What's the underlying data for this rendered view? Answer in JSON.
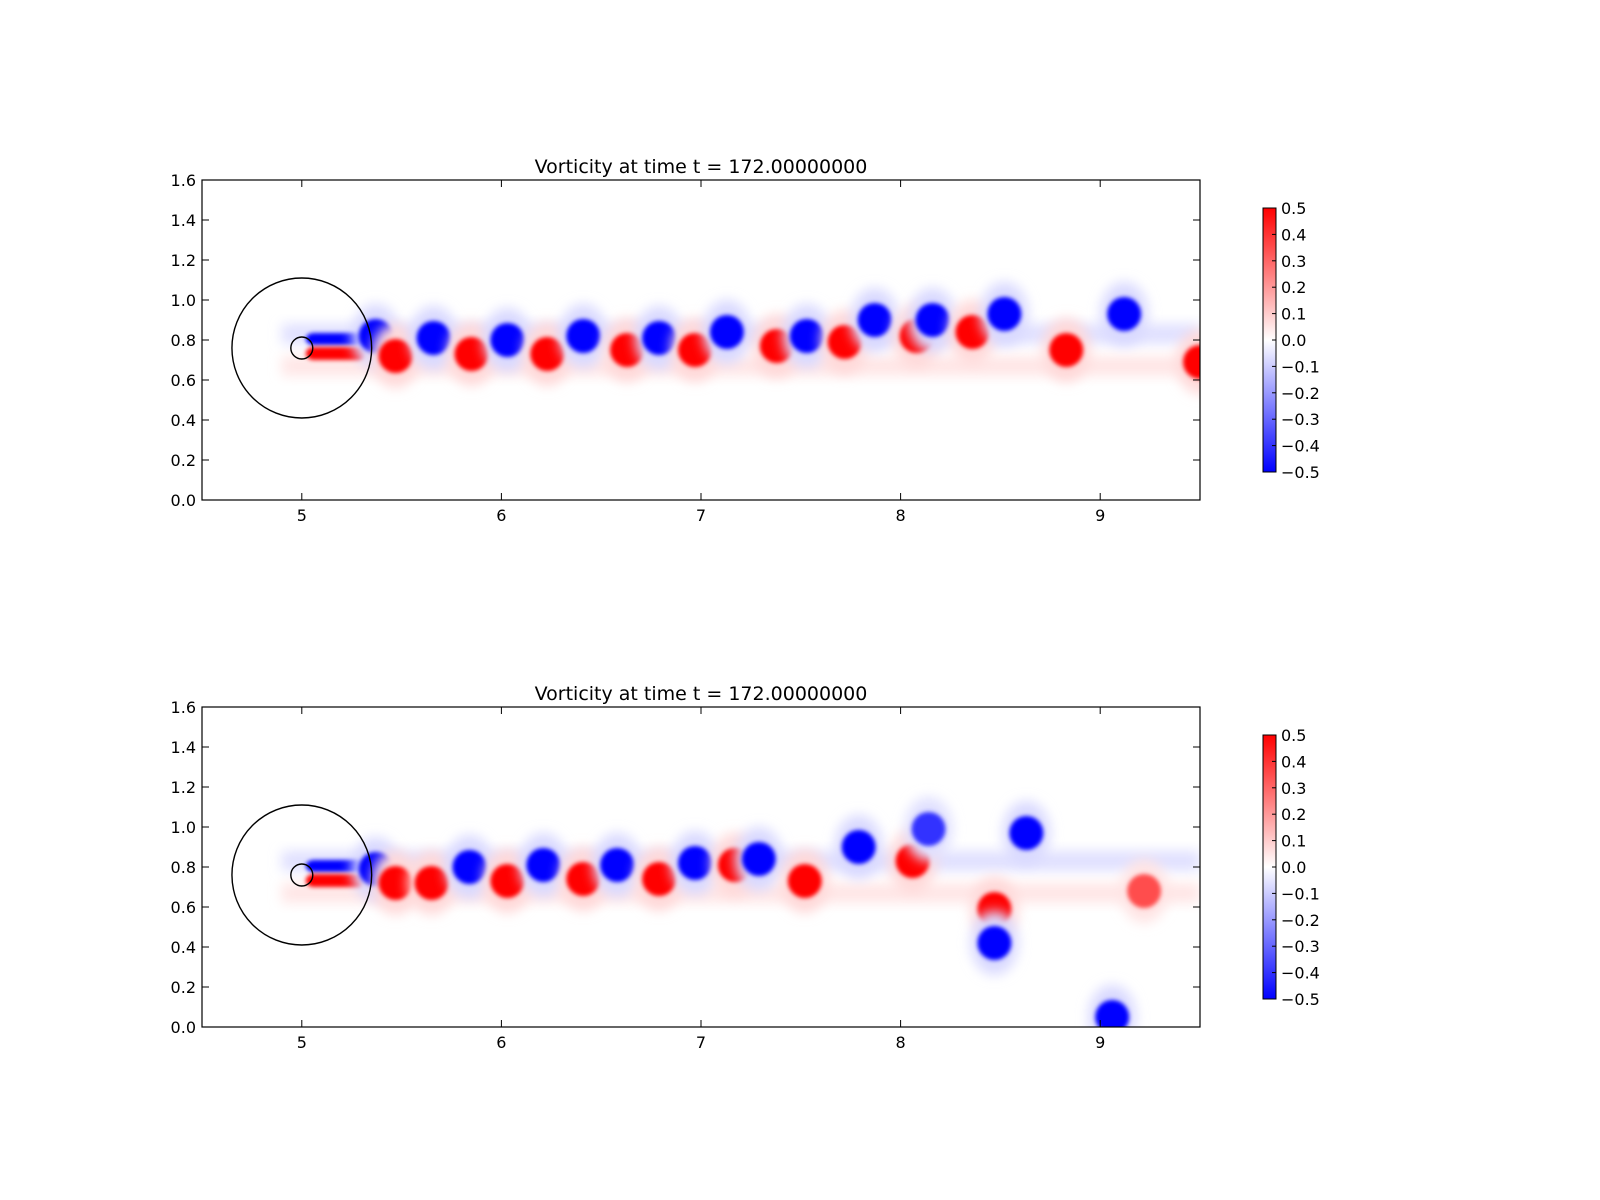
{
  "chart_data": [
    {
      "type": "heatmap",
      "title": "Vorticity at time t =   172.00000000",
      "xlabel": "",
      "ylabel": "",
      "xlim": [
        4.5,
        9.5
      ],
      "ylim": [
        0.0,
        1.6
      ],
      "xticks": [
        5,
        6,
        7,
        8,
        9
      ],
      "yticks": [
        "0.0",
        "0.2",
        "0.4",
        "0.6",
        "0.8",
        "1.0",
        "1.2",
        "1.4",
        "1.6"
      ],
      "colorbar": {
        "min": -0.5,
        "max": 0.5,
        "ticks": [
          "0.5",
          "0.4",
          "0.3",
          "0.2",
          "0.1",
          "0.0",
          "−0.1",
          "−0.2",
          "−0.3",
          "−0.4",
          "−0.5"
        ],
        "colormap": "bwr",
        "low_color": "#0000ff",
        "mid_color": "#ffffff",
        "high_color": "#ff0000"
      },
      "boundary_circles": [
        {
          "cx": 5.0,
          "cy": 0.76,
          "r": 0.35
        },
        {
          "cx": 5.0,
          "cy": 0.76,
          "r": 0.055
        }
      ],
      "vortices": [
        {
          "x": 5.37,
          "y": 0.82,
          "sign": -1,
          "strength": 0.5
        },
        {
          "x": 5.47,
          "y": 0.72,
          "sign": 1,
          "strength": 0.5
        },
        {
          "x": 5.66,
          "y": 0.81,
          "sign": -1,
          "strength": 0.5
        },
        {
          "x": 5.85,
          "y": 0.73,
          "sign": 1,
          "strength": 0.5
        },
        {
          "x": 6.03,
          "y": 0.8,
          "sign": -1,
          "strength": 0.5
        },
        {
          "x": 6.23,
          "y": 0.73,
          "sign": 1,
          "strength": 0.5
        },
        {
          "x": 6.41,
          "y": 0.82,
          "sign": -1,
          "strength": 0.5
        },
        {
          "x": 6.63,
          "y": 0.75,
          "sign": 1,
          "strength": 0.5
        },
        {
          "x": 6.79,
          "y": 0.81,
          "sign": -1,
          "strength": 0.5
        },
        {
          "x": 6.97,
          "y": 0.75,
          "sign": 1,
          "strength": 0.5
        },
        {
          "x": 7.13,
          "y": 0.84,
          "sign": -1,
          "strength": 0.5
        },
        {
          "x": 7.38,
          "y": 0.77,
          "sign": 1,
          "strength": 0.5
        },
        {
          "x": 7.53,
          "y": 0.82,
          "sign": -1,
          "strength": 0.5
        },
        {
          "x": 7.72,
          "y": 0.79,
          "sign": 1,
          "strength": 0.5
        },
        {
          "x": 7.87,
          "y": 0.9,
          "sign": -1,
          "strength": 0.5
        },
        {
          "x": 8.08,
          "y": 0.82,
          "sign": 1,
          "strength": 0.5
        },
        {
          "x": 8.16,
          "y": 0.9,
          "sign": -1,
          "strength": 0.5
        },
        {
          "x": 8.36,
          "y": 0.84,
          "sign": 1,
          "strength": 0.5
        },
        {
          "x": 8.52,
          "y": 0.93,
          "sign": -1,
          "strength": 0.5
        },
        {
          "x": 8.83,
          "y": 0.75,
          "sign": 1,
          "strength": 0.5
        },
        {
          "x": 9.12,
          "y": 0.93,
          "sign": -1,
          "strength": 0.5
        },
        {
          "x": 9.5,
          "y": 0.69,
          "sign": 1,
          "strength": 0.5
        }
      ]
    },
    {
      "type": "heatmap",
      "title": "Vorticity at time t =   172.00000000",
      "xlabel": "",
      "ylabel": "",
      "xlim": [
        4.5,
        9.5
      ],
      "ylim": [
        0.0,
        1.6
      ],
      "xticks": [
        5,
        6,
        7,
        8,
        9
      ],
      "yticks": [
        "0.0",
        "0.2",
        "0.4",
        "0.6",
        "0.8",
        "1.0",
        "1.2",
        "1.4",
        "1.6"
      ],
      "colorbar": {
        "min": -0.5,
        "max": 0.5,
        "ticks": [
          "0.5",
          "0.4",
          "0.3",
          "0.2",
          "0.1",
          "0.0",
          "−0.1",
          "−0.2",
          "−0.3",
          "−0.4",
          "−0.5"
        ],
        "colormap": "bwr",
        "low_color": "#0000ff",
        "mid_color": "#ffffff",
        "high_color": "#ff0000"
      },
      "boundary_circles": [
        {
          "cx": 5.0,
          "cy": 0.76,
          "r": 0.35
        },
        {
          "cx": 5.0,
          "cy": 0.76,
          "r": 0.055
        }
      ],
      "vortices": [
        {
          "x": 5.37,
          "y": 0.79,
          "sign": -1,
          "strength": 0.5
        },
        {
          "x": 5.47,
          "y": 0.72,
          "sign": 1,
          "strength": 0.5
        },
        {
          "x": 5.65,
          "y": 0.72,
          "sign": 1,
          "strength": 0.5
        },
        {
          "x": 5.84,
          "y": 0.8,
          "sign": -1,
          "strength": 0.5
        },
        {
          "x": 6.03,
          "y": 0.73,
          "sign": 1,
          "strength": 0.5
        },
        {
          "x": 6.21,
          "y": 0.81,
          "sign": -1,
          "strength": 0.5
        },
        {
          "x": 6.41,
          "y": 0.74,
          "sign": 1,
          "strength": 0.5
        },
        {
          "x": 6.58,
          "y": 0.81,
          "sign": -1,
          "strength": 0.5
        },
        {
          "x": 6.79,
          "y": 0.74,
          "sign": 1,
          "strength": 0.5
        },
        {
          "x": 6.97,
          "y": 0.82,
          "sign": -1,
          "strength": 0.5
        },
        {
          "x": 7.17,
          "y": 0.81,
          "sign": 1,
          "strength": 0.5
        },
        {
          "x": 7.29,
          "y": 0.84,
          "sign": -1,
          "strength": 0.5
        },
        {
          "x": 7.52,
          "y": 0.73,
          "sign": 1,
          "strength": 0.5
        },
        {
          "x": 7.79,
          "y": 0.9,
          "sign": -1,
          "strength": 0.5
        },
        {
          "x": 8.06,
          "y": 0.83,
          "sign": 1,
          "strength": 0.5
        },
        {
          "x": 8.14,
          "y": 0.99,
          "sign": -1,
          "strength": 0.4
        },
        {
          "x": 8.47,
          "y": 0.59,
          "sign": 1,
          "strength": 0.5
        },
        {
          "x": 8.47,
          "y": 0.42,
          "sign": -1,
          "strength": 0.5
        },
        {
          "x": 8.63,
          "y": 0.97,
          "sign": -1,
          "strength": 0.5
        },
        {
          "x": 9.06,
          "y": 0.05,
          "sign": -1,
          "strength": 0.5
        },
        {
          "x": 9.22,
          "y": 0.68,
          "sign": 1,
          "strength": 0.35
        }
      ]
    }
  ]
}
